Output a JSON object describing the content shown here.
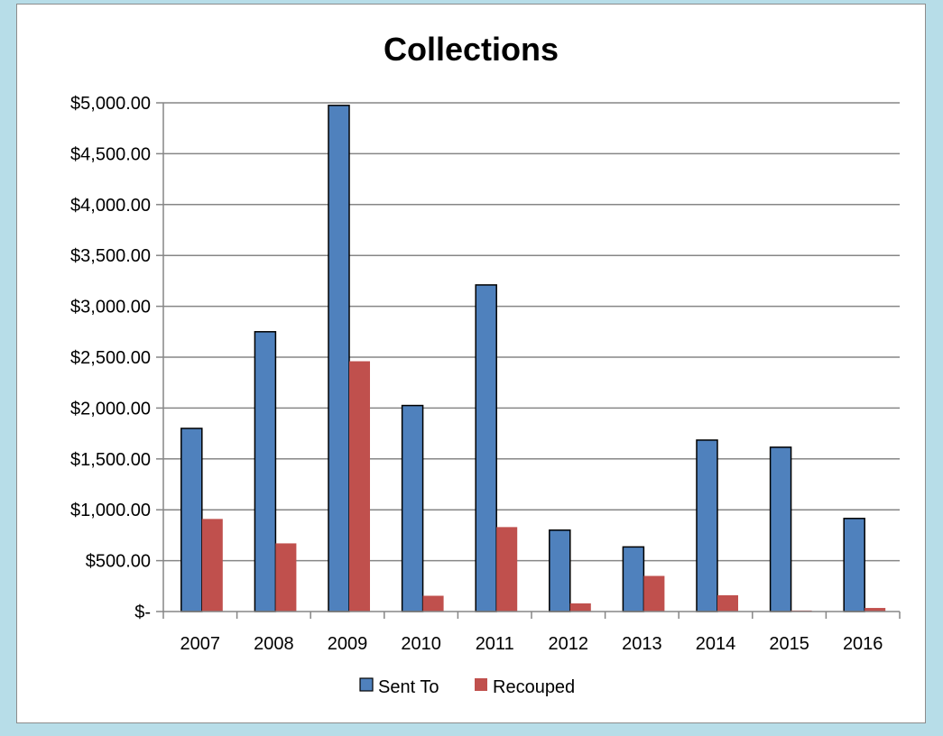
{
  "chart_data": {
    "type": "bar",
    "title": "Collections",
    "xlabel": "",
    "ylabel": "",
    "categories": [
      "2007",
      "2008",
      "2009",
      "2010",
      "2011",
      "2012",
      "2013",
      "2014",
      "2015",
      "2016"
    ],
    "series": [
      {
        "name": "Sent To",
        "color": "#4f81bd",
        "values": [
          1800,
          2750,
          4975,
          2025,
          3210,
          800,
          635,
          1685,
          1615,
          915
        ]
      },
      {
        "name": "Recouped",
        "color": "#c0504d",
        "values": [
          910,
          670,
          2460,
          155,
          830,
          80,
          350,
          160,
          10,
          35
        ]
      }
    ],
    "ylim": [
      0,
      5000
    ],
    "y_ticks": [
      {
        "value": 0,
        "label": "$-"
      },
      {
        "value": 500,
        "label": "$500.00"
      },
      {
        "value": 1000,
        "label": "$1,000.00"
      },
      {
        "value": 1500,
        "label": "$1,500.00"
      },
      {
        "value": 2000,
        "label": "$2,000.00"
      },
      {
        "value": 2500,
        "label": "$2,500.00"
      },
      {
        "value": 3000,
        "label": "$3,000.00"
      },
      {
        "value": 3500,
        "label": "$3,500.00"
      },
      {
        "value": 4000,
        "label": "$4,000.00"
      },
      {
        "value": 4500,
        "label": "$4,500.00"
      },
      {
        "value": 5000,
        "label": "$5,000.00"
      }
    ],
    "grid": true,
    "legend_position": "bottom"
  }
}
